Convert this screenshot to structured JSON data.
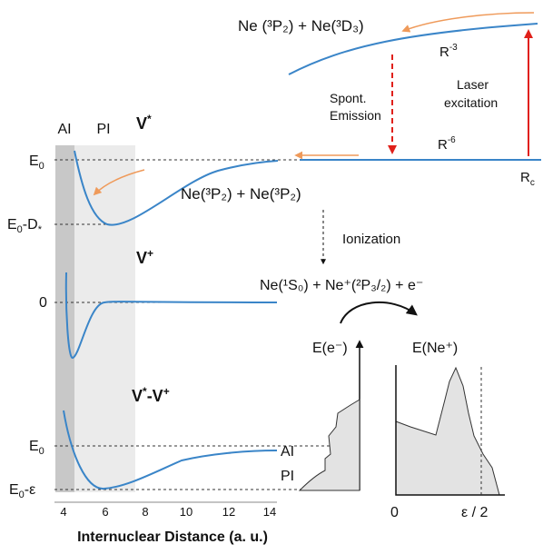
{
  "regions": {
    "ai": "AI",
    "pi": "PI"
  },
  "curves": {
    "v_star": {
      "label": "V",
      "sup": "*"
    },
    "v_plus": {
      "label": "V",
      "sup": "+"
    },
    "v_diff": {
      "label_a": "V",
      "sup_a": "*",
      "dash": "-V",
      "sup_b": "+"
    }
  },
  "energy_labels": {
    "e0_top": "E",
    "e0_top_sub": "0",
    "e0_minus_d": "E",
    "e0_minus_d_sub": "0",
    "e0_minus_d_tail": "-D",
    "e0_minus_d_sub2": "*",
    "zero": "0",
    "e0_bottom": "E",
    "e0_bottom_sub": "0",
    "e0_minus_eps": "E",
    "e0_minus_eps_sub": "0",
    "e0_minus_eps_tail": "-ε"
  },
  "x_axis": {
    "ticks": [
      "4",
      "6",
      "8",
      "10",
      "12",
      "14"
    ],
    "label": "Internuclear Distance (a. u.)"
  },
  "top_right": {
    "states_upper": "Ne (³P₂) + Ne(³D₃)",
    "r_minus3": "R",
    "r_minus3_sup": "-3",
    "r_minus6": "R",
    "r_minus6_sup": "-6",
    "spont_line1": "Spont.",
    "spont_line2": "Emission",
    "laser_line1": "Laser",
    "laser_line2": "excitation",
    "rc": "R",
    "rc_sub": "c"
  },
  "middle": {
    "states_lower": "Ne(³P₂) + Ne(³P₂)",
    "ionization": "Ionization",
    "products": "Ne(¹S₀) + Ne⁺(²P₃/₂) + e⁻"
  },
  "spectra": {
    "electron_title": "E(e⁻)",
    "ion_title": "E(Ne⁺)",
    "ai_label": "AI",
    "pi_label": "PI",
    "ion_zero": "0",
    "ion_eps": "ε / 2"
  },
  "colors": {
    "curve": "#3a85c8",
    "orange_arrow": "#ef9a5a",
    "red_arrow": "#e0201a",
    "ai_band": "#c8c8c8",
    "pi_band": "#ebebeb",
    "spectrum_fill": "#e3e3e3"
  }
}
